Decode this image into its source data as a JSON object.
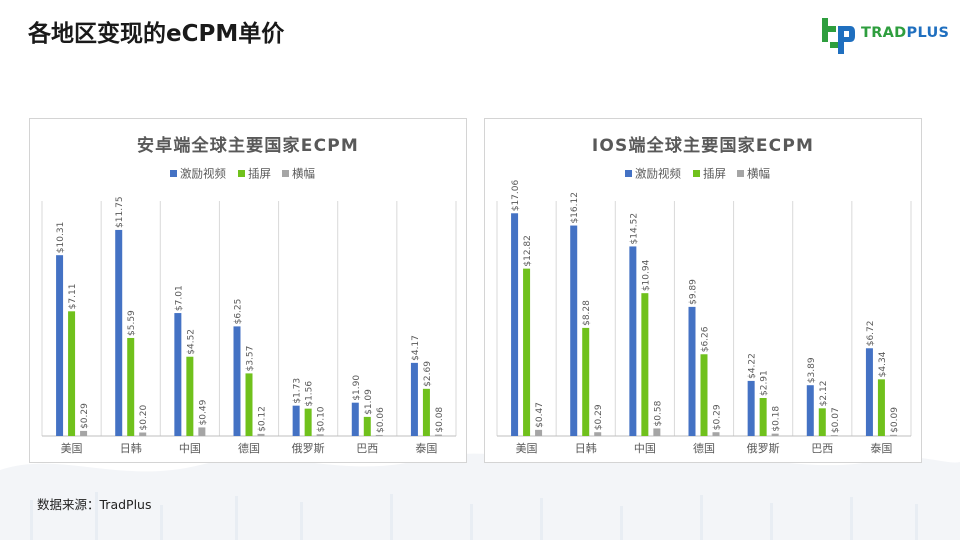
{
  "page": {
    "title": "各地区变现的eCPM单价",
    "source": "数据来源：TradPlus"
  },
  "logo": {
    "text_trad": "TRAD",
    "text_plus": "PLUS"
  },
  "colors": {
    "激励视频": "#4472c4",
    "插屏": "#70c11c",
    "横幅": "#a5a5a5",
    "grid": "#d9d9d9",
    "axis": "#bfbfbf",
    "title": "#595959",
    "label": "#595959"
  },
  "chart_data": [
    {
      "type": "bar",
      "title": "安卓端全球主要国家ECPM",
      "categories": [
        "美国",
        "日韩",
        "中国",
        "德国",
        "俄罗斯",
        "巴西",
        "泰国"
      ],
      "series": [
        {
          "name": "激励视频",
          "values": [
            10.31,
            11.75,
            7.01,
            6.25,
            1.73,
            1.9,
            4.17
          ],
          "labels": [
            "$10.31",
            "$11.75",
            "$7.01",
            "$6.25",
            "$1.73",
            "$1.90",
            "$4.17"
          ]
        },
        {
          "name": "插屏",
          "values": [
            7.11,
            5.59,
            4.52,
            3.57,
            1.56,
            1.09,
            2.69
          ],
          "labels": [
            "$7.11",
            "$5.59",
            "$4.52",
            "$3.57",
            "$1.56",
            "$1.09",
            "$2.69"
          ]
        },
        {
          "name": "横幅",
          "values": [
            0.29,
            0.2,
            0.49,
            0.12,
            0.1,
            0.06,
            0.08
          ],
          "labels": [
            "$0.29",
            "$0.20",
            "$0.49",
            "$0.12",
            "$0.10",
            "$0.06",
            "$0.08"
          ]
        }
      ],
      "ylim": [
        0,
        13.4
      ],
      "legend": "top-center",
      "grid": "vertical separators"
    },
    {
      "type": "bar",
      "title": "IOS端全球主要国家ECPM",
      "categories": [
        "美国",
        "日韩",
        "中国",
        "德国",
        "俄罗斯",
        "巴西",
        "泰国"
      ],
      "series": [
        {
          "name": "激励视频",
          "values": [
            17.06,
            16.12,
            14.52,
            9.89,
            4.22,
            3.89,
            6.72
          ],
          "labels": [
            "$17.06",
            "$16.12",
            "$14.52",
            "$9.89",
            "$4.22",
            "$3.89",
            "$6.72"
          ]
        },
        {
          "name": "插屏",
          "values": [
            12.82,
            8.28,
            10.94,
            6.26,
            2.91,
            2.12,
            4.34
          ],
          "labels": [
            "$12.82",
            "$8.28",
            "$10.94",
            "$6.26",
            "$2.91",
            "$2.12",
            "$4.34"
          ]
        },
        {
          "name": "横幅",
          "values": [
            0.47,
            0.29,
            0.58,
            0.29,
            0.18,
            0.07,
            0.09
          ],
          "labels": [
            "$0.47",
            "$0.29",
            "$0.58",
            "$0.29",
            "$0.18",
            "$0.07",
            "$0.09"
          ]
        }
      ],
      "ylim": [
        0,
        18.0
      ],
      "legend": "top-center",
      "grid": "vertical separators"
    }
  ]
}
